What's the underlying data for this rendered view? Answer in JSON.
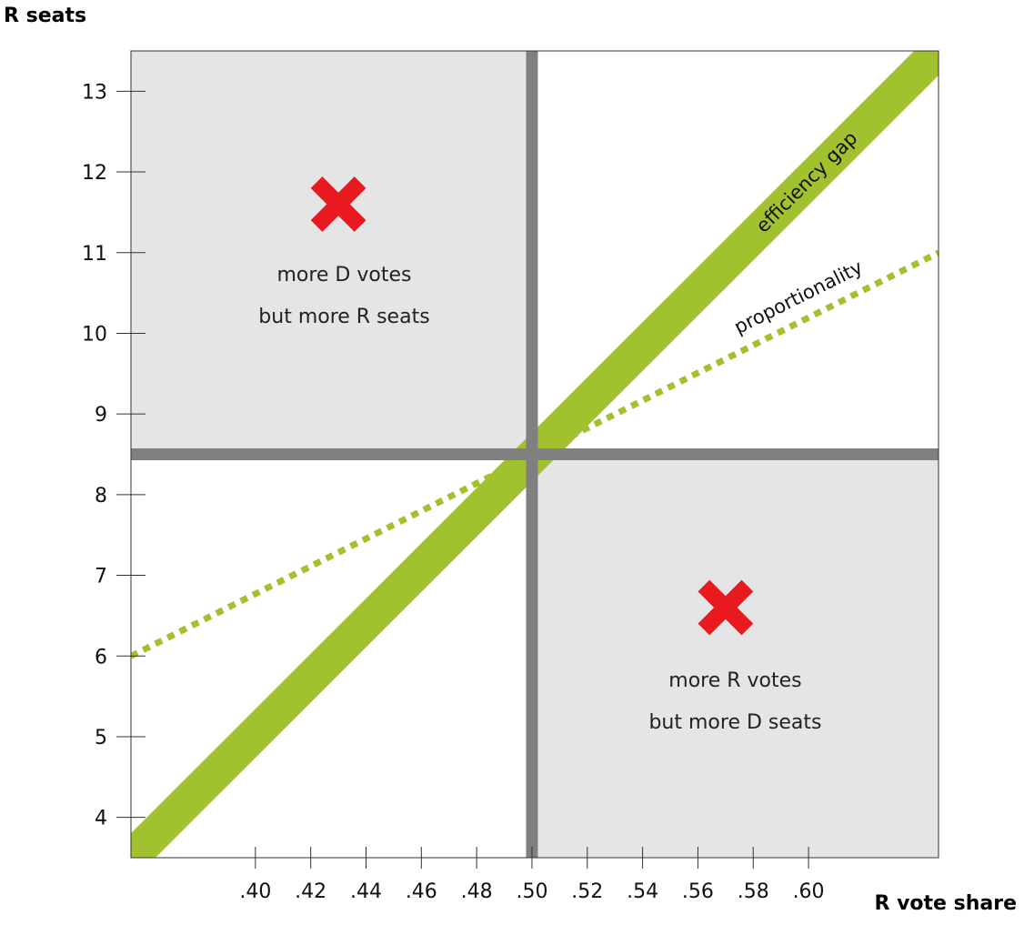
{
  "chart_data": {
    "type": "line",
    "xlabel": "R vote share",
    "ylabel": "R seats",
    "xlim": [
      0.355,
      0.647
    ],
    "ylim": [
      3.5,
      13.5
    ],
    "x_ticks": [
      0.4,
      0.42,
      0.44,
      0.46,
      0.48,
      0.5,
      0.52,
      0.54,
      0.56,
      0.58,
      0.6
    ],
    "x_tick_labels": [
      ".40",
      ".42",
      ".44",
      ".46",
      ".48",
      ".50",
      ".52",
      ".54",
      ".56",
      ".58",
      ".60"
    ],
    "y_ticks": [
      4,
      5,
      6,
      7,
      8,
      9,
      10,
      11,
      12,
      13
    ],
    "y_tick_labels": [
      "4",
      "5",
      "6",
      "7",
      "8",
      "9",
      "10",
      "11",
      "12",
      "13"
    ],
    "quadrants": {
      "split_x": 0.5,
      "split_y": 8.5,
      "upper_left_label": [
        "more D votes",
        "but more R seats"
      ],
      "lower_right_label": [
        "more R votes",
        "but more D seats"
      ]
    },
    "series": [
      {
        "name": "efficiency gap",
        "style": "band",
        "color": "#a2c12e",
        "points": [
          [
            0.355,
            3.5
          ],
          [
            0.647,
            13.5
          ]
        ]
      },
      {
        "name": "proportionality",
        "style": "dotted",
        "color": "#a2c12e",
        "points": [
          [
            0.355,
            6.0
          ],
          [
            0.647,
            11.0
          ]
        ]
      }
    ],
    "markers": [
      {
        "type": "x",
        "x": 0.43,
        "y": 11.6,
        "color": "#e8191f"
      },
      {
        "type": "x",
        "x": 0.57,
        "y": 6.6,
        "color": "#e8191f"
      }
    ],
    "colors": {
      "shaded_region": "#e5e5e5",
      "divider": "#808080",
      "accent": "#a2c12e",
      "marker": "#e8191f"
    },
    "grid": false
  }
}
